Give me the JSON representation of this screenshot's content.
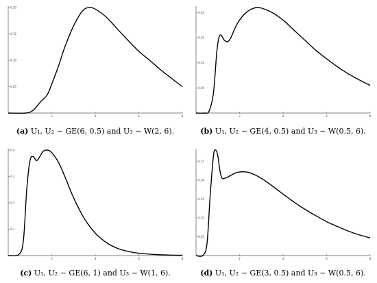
{
  "chart_data": [
    {
      "id": "a",
      "type": "line",
      "caption_tag": "(a)",
      "caption_text": "U₁, U₂ ∼ GE(6, 0.5) and U₃ ∼ W(2, 6).",
      "xlim": [
        0,
        8
      ],
      "ylim": [
        0,
        0.2
      ],
      "xticks": [
        2,
        4,
        6,
        8
      ],
      "yticks": [
        0.05,
        0.1,
        0.15,
        0.2
      ],
      "ytick_labels": [
        "0.05",
        "0.10",
        "0.15",
        "0.20"
      ],
      "series": [
        {
          "x": [
            0,
            0.8,
            1.1,
            1.3,
            1.5,
            1.6,
            1.8,
            2.0,
            2.3,
            2.6,
            3.0,
            3.4,
            3.7,
            4.0,
            4.5,
            5.0,
            5.5,
            6.0,
            6.5,
            7.0,
            7.5,
            8.0
          ],
          "y": [
            0,
            0,
            0.004,
            0.012,
            0.022,
            0.026,
            0.035,
            0.055,
            0.088,
            0.125,
            0.165,
            0.193,
            0.2,
            0.197,
            0.182,
            0.16,
            0.138,
            0.117,
            0.1,
            0.082,
            0.066,
            0.05
          ]
        }
      ]
    },
    {
      "id": "b",
      "type": "line",
      "caption_tag": "(b)",
      "caption_text": "U₁, U₂ ∼ GE(4, 0.5) and U₃ ∼ W(0.5, 6).",
      "xlim": [
        0,
        8
      ],
      "ylim": [
        0,
        0.21
      ],
      "xticks": [
        2,
        4,
        6,
        8
      ],
      "yticks": [
        0.05,
        0.1,
        0.15,
        0.2
      ],
      "ytick_labels": [
        "0.05",
        "0.10",
        "0.15",
        "0.20"
      ],
      "series": [
        {
          "x": [
            0,
            0.4,
            0.6,
            0.8,
            0.95,
            1.05,
            1.15,
            1.3,
            1.45,
            1.6,
            1.8,
            2.0,
            2.3,
            2.6,
            2.8,
            3.0,
            3.5,
            4.0,
            4.5,
            5.0,
            5.5,
            6.0,
            6.5,
            7.0,
            7.5,
            8.0
          ],
          "y": [
            0,
            0,
            0.004,
            0.04,
            0.12,
            0.15,
            0.155,
            0.145,
            0.142,
            0.15,
            0.17,
            0.185,
            0.2,
            0.208,
            0.21,
            0.209,
            0.2,
            0.185,
            0.165,
            0.145,
            0.125,
            0.108,
            0.092,
            0.078,
            0.066,
            0.055
          ]
        }
      ]
    },
    {
      "id": "c",
      "type": "line",
      "caption_tag": "(c)",
      "caption_text": "U₁, U₂ ∼ GE(6, 1) and U₃ ∼ W(1, 6).",
      "xlim": [
        0,
        8
      ],
      "ylim": [
        0,
        0.4
      ],
      "xticks": [
        2,
        4,
        6,
        8
      ],
      "yticks": [
        0.1,
        0.2,
        0.3,
        0.4
      ],
      "ytick_labels": [
        "0.1",
        "0.2",
        "0.3",
        "0.4"
      ],
      "series": [
        {
          "x": [
            0,
            0.5,
            0.7,
            0.85,
            1.0,
            1.15,
            1.3,
            1.45,
            1.6,
            1.8,
            2.0,
            2.3,
            2.6,
            3.0,
            3.5,
            4.0,
            4.5,
            5.0,
            5.5,
            6.0,
            7.0,
            8.0
          ],
          "y": [
            0,
            0.005,
            0.06,
            0.25,
            0.36,
            0.375,
            0.36,
            0.375,
            0.395,
            0.4,
            0.39,
            0.355,
            0.3,
            0.22,
            0.14,
            0.085,
            0.05,
            0.028,
            0.016,
            0.009,
            0.003,
            0.001
          ]
        }
      ]
    },
    {
      "id": "d",
      "type": "line",
      "caption_tag": "(d)",
      "caption_text": "U₁, U₂ ∼ GE(3, 0.5) and U₃ ∼ W(0.5, 6).",
      "xlim": [
        0,
        8
      ],
      "ylim": [
        0,
        0.28
      ],
      "xticks": [
        2,
        4,
        6,
        8
      ],
      "yticks": [
        0.05,
        0.1,
        0.15,
        0.2,
        0.25
      ],
      "ytick_labels": [
        "0.05",
        "0.10",
        "0.15",
        "0.20",
        "0.25"
      ],
      "series": [
        {
          "x": [
            0,
            0.3,
            0.5,
            0.65,
            0.8,
            0.9,
            1.0,
            1.1,
            1.2,
            1.4,
            1.6,
            1.8,
            2.0,
            2.3,
            2.6,
            3.0,
            3.5,
            4.0,
            4.5,
            5.0,
            5.5,
            6.0,
            6.5,
            7.0,
            7.5,
            8.0
          ],
          "y": [
            0,
            0,
            0.03,
            0.16,
            0.265,
            0.28,
            0.265,
            0.225,
            0.205,
            0.207,
            0.213,
            0.219,
            0.222,
            0.222,
            0.217,
            0.205,
            0.185,
            0.163,
            0.142,
            0.123,
            0.106,
            0.09,
            0.077,
            0.065,
            0.055,
            0.047
          ]
        }
      ]
    }
  ]
}
